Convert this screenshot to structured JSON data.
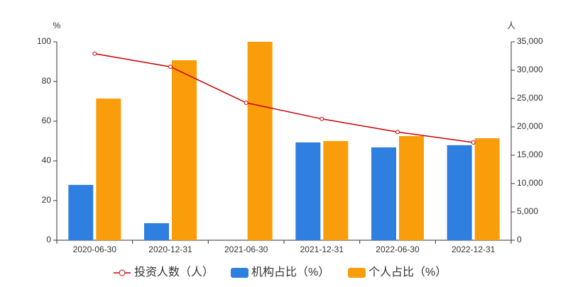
{
  "chart_data": {
    "type": "bar",
    "categories": [
      "2020-06-30",
      "2020-12-31",
      "2021-06-30",
      "2021-12-31",
      "2022-06-30",
      "2022-12-31"
    ],
    "y_label": "%",
    "y2_label": "人",
    "series": [
      {
        "name": "投资人数（人）",
        "color": "#cc0000",
        "type": "line",
        "axis": "y2",
        "values": [
          32900,
          30600,
          24250,
          21400,
          19100,
          17250
        ]
      },
      {
        "name": "机构占比（%）",
        "color": "#2e7fe0",
        "values": [
          27.9,
          8.6,
          0,
          49.3,
          46.8,
          47.9
        ]
      },
      {
        "name": "个人占比（%）",
        "color": "#f99d0a",
        "values": [
          71.4,
          90.7,
          100,
          50,
          52.5,
          51.4
        ]
      }
    ],
    "ylim": [
      0,
      100
    ],
    "yticks": [
      0,
      20,
      40,
      60,
      80,
      100
    ],
    "y2lim": [
      0,
      35000
    ],
    "y2ticks": [
      0,
      {
        "value": 5000,
        "label": "5,000"
      },
      {
        "value": 10000,
        "label": "10,000"
      },
      {
        "value": 15000,
        "label": "15,000"
      },
      {
        "value": 20000,
        "label": "20,000"
      },
      {
        "value": 25000,
        "label": "25,000"
      },
      {
        "value": 30000,
        "label": "30,000"
      },
      {
        "value": 35000,
        "label": "35,000"
      }
    ],
    "grid": false
  }
}
